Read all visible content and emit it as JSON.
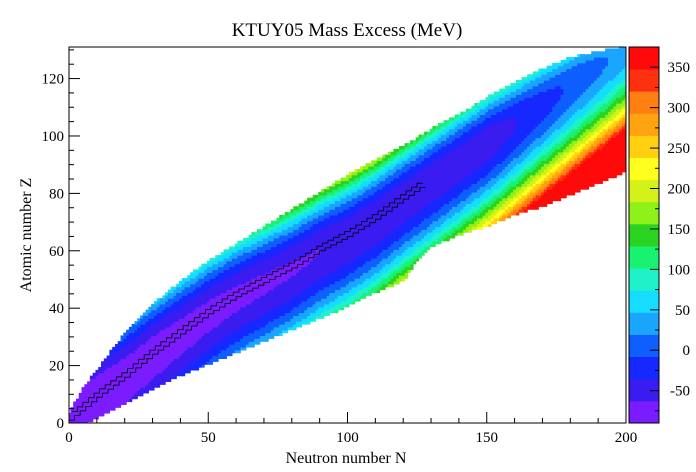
{
  "chart_data": {
    "type": "heatmap",
    "title": "KTUY05 Mass Excess (MeV)",
    "xlabel": "Neutron number N",
    "ylabel": "Atomic number Z",
    "xlim": [
      0,
      200
    ],
    "ylim": [
      0,
      131
    ],
    "x_ticks": [
      0,
      50,
      100,
      150,
      200
    ],
    "y_ticks": [
      0,
      20,
      40,
      60,
      80,
      100,
      120
    ],
    "x_tick_labels": [
      "0",
      "50",
      "100",
      "150",
      "200"
    ],
    "y_tick_labels": [
      "0",
      "20",
      "40",
      "60",
      "80",
      "100",
      "120"
    ],
    "colorbar": {
      "min": -90,
      "max": 375,
      "ticks": [
        -50,
        0,
        50,
        100,
        150,
        200,
        250,
        300,
        350
      ],
      "tick_labels": [
        "-50",
        "0",
        "50",
        "100",
        "150",
        "200",
        "250",
        "300",
        "350"
      ],
      "palette": [
        "#7a1cff",
        "#3a1cf0",
        "#1428ff",
        "#0f5fff",
        "#1aa5ff",
        "#14ddff",
        "#1ef2c8",
        "#19f271",
        "#2bd321",
        "#8ef219",
        "#d4f21a",
        "#ffff1e",
        "#ffcf10",
        "#ffa310",
        "#ff7f10",
        "#ff3010",
        "#ff0a0a"
      ]
    },
    "chart_region": {
      "description": "nuclide chart: drip-line boundaries as Z ranges per N",
      "boundaries": [
        {
          "N": 0,
          "Z_min": 0,
          "Z_max": 3
        },
        {
          "N": 5,
          "Z_min": 0,
          "Z_max": 12
        },
        {
          "N": 10,
          "Z_min": 2,
          "Z_max": 18
        },
        {
          "N": 20,
          "Z_min": 7,
          "Z_max": 31
        },
        {
          "N": 30,
          "Z_min": 12,
          "Z_max": 41
        },
        {
          "N": 40,
          "Z_min": 17,
          "Z_max": 49
        },
        {
          "N": 50,
          "Z_min": 21,
          "Z_max": 56
        },
        {
          "N": 60,
          "Z_min": 25,
          "Z_max": 62
        },
        {
          "N": 70,
          "Z_min": 29,
          "Z_max": 68
        },
        {
          "N": 80,
          "Z_min": 33,
          "Z_max": 74
        },
        {
          "N": 90,
          "Z_min": 37,
          "Z_max": 80
        },
        {
          "N": 100,
          "Z_min": 41,
          "Z_max": 86
        },
        {
          "N": 110,
          "Z_min": 46,
          "Z_max": 91
        },
        {
          "N": 120,
          "Z_min": 50,
          "Z_max": 96
        },
        {
          "N": 125,
          "Z_min": 57,
          "Z_max": 99
        },
        {
          "N": 130,
          "Z_min": 62,
          "Z_max": 102
        },
        {
          "N": 140,
          "Z_min": 66,
          "Z_max": 107
        },
        {
          "N": 150,
          "Z_min": 69,
          "Z_max": 113
        },
        {
          "N": 160,
          "Z_min": 73,
          "Z_max": 118
        },
        {
          "N": 170,
          "Z_min": 76,
          "Z_max": 123
        },
        {
          "N": 180,
          "Z_min": 80,
          "Z_max": 127
        },
        {
          "N": 190,
          "Z_min": 84,
          "Z_max": 129
        },
        {
          "N": 200,
          "Z_min": 88,
          "Z_max": 131
        }
      ]
    },
    "stable_valley": [
      [
        0,
        1
      ],
      [
        5,
        5
      ],
      [
        10,
        9
      ],
      [
        20,
        16
      ],
      [
        30,
        24
      ],
      [
        40,
        31
      ],
      [
        50,
        38
      ],
      [
        60,
        44
      ],
      [
        70,
        49
      ],
      [
        80,
        54
      ],
      [
        90,
        60
      ],
      [
        100,
        65
      ],
      [
        110,
        71
      ],
      [
        120,
        78
      ],
      [
        126,
        82
      ]
    ],
    "grid": false,
    "legend": "colorbar-right"
  }
}
